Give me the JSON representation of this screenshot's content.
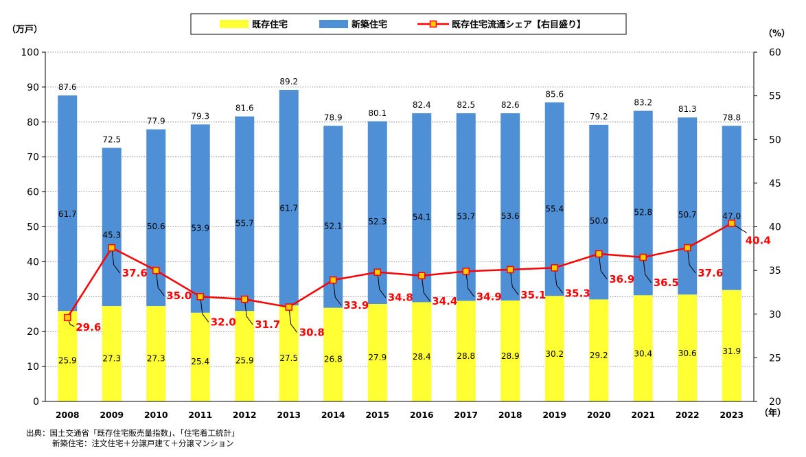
{
  "chart_data": {
    "type": "bar",
    "stacked": true,
    "categories": [
      "2008",
      "2009",
      "2010",
      "2011",
      "2012",
      "2013",
      "2014",
      "2015",
      "2016",
      "2017",
      "2018",
      "2019",
      "2020",
      "2021",
      "2022",
      "2023"
    ],
    "series": [
      {
        "name": "既存住宅",
        "color": "#ffff33",
        "axis": "left",
        "values": [
          25.9,
          27.3,
          27.3,
          25.4,
          25.9,
          27.5,
          26.8,
          27.9,
          28.4,
          28.8,
          28.9,
          30.2,
          29.2,
          30.4,
          30.6,
          31.9
        ]
      },
      {
        "name": "新築住宅",
        "color": "#4f8fd6",
        "axis": "left",
        "values": [
          61.7,
          45.3,
          50.6,
          53.9,
          55.7,
          61.7,
          52.1,
          52.3,
          54.1,
          53.7,
          53.6,
          55.4,
          50.0,
          52.8,
          50.7,
          47.0
        ]
      },
      {
        "name": "既存住宅流通シェア【右目盛り】",
        "color": "#ff0000",
        "type": "line",
        "axis": "right",
        "values": [
          29.6,
          37.6,
          35.0,
          32.0,
          31.7,
          30.8,
          33.9,
          34.8,
          34.4,
          34.9,
          35.1,
          35.3,
          36.9,
          36.5,
          37.6,
          40.4
        ]
      }
    ],
    "totals": [
      "87.6",
      "72.5",
      "77.9",
      "79.3",
      "81.6",
      "89.2",
      "78.9",
      "80.1",
      "82.4",
      "82.5",
      "82.6",
      "85.6",
      "79.2",
      "83.2",
      "81.3",
      "78.8"
    ],
    "left_axis": {
      "unit": "（万戸）",
      "ylim": [
        0,
        100
      ],
      "ticks": [
        "0",
        "10",
        "20",
        "30",
        "40",
        "50",
        "60",
        "70",
        "80",
        "90",
        "100"
      ]
    },
    "right_axis": {
      "unit": "（%）",
      "ylim": [
        20,
        60
      ],
      "ticks": [
        "20",
        "25",
        "30",
        "35",
        "40",
        "45",
        "50",
        "55",
        "60"
      ]
    },
    "x_unit": "（年）",
    "grid": "dotted horizontal",
    "legend": "top-center"
  },
  "source": {
    "line1": "出典：国土交通省「既存住宅販売量指数」、「住宅着工統計」",
    "line2": "新築住宅：注文住宅＋分譲戸建て＋分譲マンション"
  }
}
